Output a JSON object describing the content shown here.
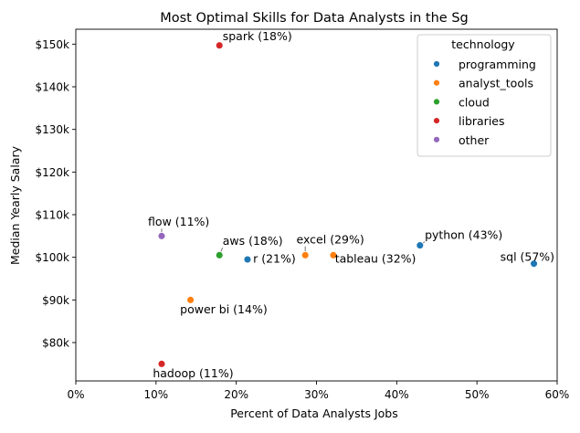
{
  "chart_data": {
    "type": "scatter",
    "title": "Most Optimal Skills for Data Analysts in the Sg",
    "xlabel": "Percent of Data Analysts Jobs",
    "ylabel": "Median Yearly Salary",
    "xlim": [
      0,
      60
    ],
    "ylim": [
      71000,
      153500
    ],
    "x_ticks": [
      0,
      10,
      20,
      30,
      40,
      50,
      60
    ],
    "x_tick_labels": [
      "0%",
      "10%",
      "20%",
      "30%",
      "40%",
      "50%",
      "60%"
    ],
    "y_ticks": [
      80000,
      90000,
      100000,
      110000,
      120000,
      130000,
      140000,
      150000
    ],
    "y_tick_labels": [
      "$80k",
      "$90k",
      "$100k",
      "$110k",
      "$120k",
      "$130k",
      "$140k",
      "$150k"
    ],
    "grid": false,
    "legend": {
      "title": "technology",
      "placement": "top-right",
      "entries": [
        {
          "name": "programming",
          "color": "#1f77b4"
        },
        {
          "name": "analyst_tools",
          "color": "#ff7f0e"
        },
        {
          "name": "cloud",
          "color": "#2ca02c"
        },
        {
          "name": "libraries",
          "color": "#d62728"
        },
        {
          "name": "other",
          "color": "#9467bd"
        }
      ]
    },
    "points": [
      {
        "label": "sql (57%)",
        "x": 57.1,
        "y": 98500,
        "technology": "programming",
        "lx": 52.9,
        "ly": 99200,
        "anchor": "start",
        "leader": false
      },
      {
        "label": "python (43%)",
        "x": 42.9,
        "y": 102800,
        "technology": "programming",
        "lx": 43.5,
        "ly": 104300,
        "anchor": "start",
        "leader": true
      },
      {
        "label": "tableau (32%)",
        "x": 32.1,
        "y": 100500,
        "technology": "analyst_tools",
        "lx": 32.3,
        "ly": 98700,
        "anchor": "start",
        "leader": false
      },
      {
        "label": "excel (29%)",
        "x": 28.6,
        "y": 100500,
        "technology": "analyst_tools",
        "lx": 27.5,
        "ly": 103200,
        "anchor": "start",
        "leader": true
      },
      {
        "label": "r (21%)",
        "x": 21.4,
        "y": 99500,
        "technology": "programming",
        "lx": 22.1,
        "ly": 98700,
        "anchor": "start",
        "leader": false
      },
      {
        "label": "aws (18%)",
        "x": 17.9,
        "y": 100500,
        "technology": "cloud",
        "lx": 18.3,
        "ly": 102900,
        "anchor": "start",
        "leader": true
      },
      {
        "label": "spark (18%)",
        "x": 17.9,
        "y": 149700,
        "technology": "libraries",
        "lx": 18.3,
        "ly": 150900,
        "anchor": "start",
        "leader": false
      },
      {
        "label": "power bi (14%)",
        "x": 14.3,
        "y": 90000,
        "technology": "analyst_tools",
        "lx": 13.0,
        "ly": 86900,
        "anchor": "start",
        "leader": true
      },
      {
        "label": "flow (11%)",
        "x": 10.7,
        "y": 105000,
        "technology": "other",
        "lx": 9.0,
        "ly": 107400,
        "anchor": "start",
        "leader": true
      },
      {
        "label": "hadoop (11%)",
        "x": 10.7,
        "y": 75000,
        "technology": "libraries",
        "lx": 9.6,
        "ly": 71900,
        "anchor": "start",
        "leader": true
      }
    ]
  }
}
